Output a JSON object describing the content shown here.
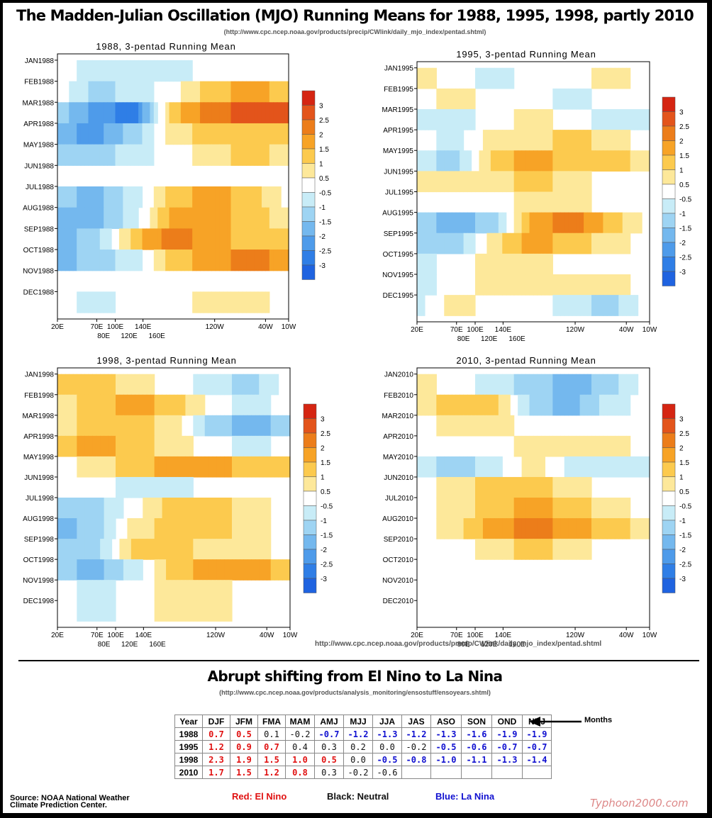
{
  "header": {
    "title": "The Madden-Julian Oscillation (MJO) Running Means for 1988, 1995, 1998, partly 2010",
    "source_url": "(http://www.cpc.ncep.noaa.gov/products/precip/CWlink/daily_mjo_index/pentad.shtml)"
  },
  "mid_source": "http://www.cpc.ncep.noaa.gov/products/precip/CWlink/daily_mjo_index/pentad.shtml",
  "colors": {
    "pos": [
      "#fde89a",
      "#fcca4e",
      "#f7a326",
      "#ec7d1a",
      "#e3541b",
      "#d52512"
    ],
    "neg": [
      "#c8ecf7",
      "#9ed4f3",
      "#74b8ee",
      "#4e9bea",
      "#2f7ee6",
      "#1f63e0"
    ]
  },
  "colorbar_ticks": [
    "3",
    "2.5",
    "2",
    "1.5",
    "1",
    "0.5",
    "-0.5",
    "-1",
    "-1.5",
    "-2",
    "-2.5",
    "-3"
  ],
  "x_axis": {
    "top_labels": [
      "20E",
      "70E",
      "100E",
      "140E",
      "120W",
      "40W",
      "10W"
    ],
    "bottom_labels": [
      "80E",
      "120E",
      "160E"
    ]
  },
  "chart_data": [
    {
      "type": "heatmap",
      "title": "1988, 3-pentad Running Mean",
      "rows": [
        "JAN1988",
        "FEB1988",
        "MAR1988",
        "APR1988",
        "MAY1988",
        "JUN1988",
        "JUL1988",
        "AUG1988",
        "SEP1988",
        "OCT1988",
        "NOV1988",
        "DEC1988"
      ],
      "cols": [
        "20E",
        "70E",
        "100E",
        "140E",
        "120W",
        "40W",
        "10W"
      ],
      "clevels": [
        -3,
        -2.5,
        -2,
        -1.5,
        -1,
        -0.5,
        0.5,
        1,
        1.5,
        2,
        2.5,
        3
      ],
      "values": [
        [
          0,
          -0.5,
          -0.5,
          -0.5,
          0,
          0,
          0
        ],
        [
          0,
          -1,
          -0.5,
          0,
          1,
          1.5,
          1
        ],
        [
          -1,
          -2,
          -2.5,
          1,
          2,
          2.5,
          2.5
        ],
        [
          -1.5,
          -2,
          -1,
          0.5,
          1,
          1,
          1
        ],
        [
          -1,
          -1,
          -0.5,
          0,
          0.5,
          1,
          0.5
        ],
        [
          0,
          0,
          0,
          0,
          0,
          0,
          0
        ],
        [
          -1,
          -1.5,
          -0.5,
          1,
          1.5,
          1,
          0
        ],
        [
          -1.5,
          -1.5,
          -0.5,
          1.5,
          1.5,
          1,
          0.5
        ],
        [
          -1.5,
          -1,
          1,
          2,
          1.5,
          1,
          1
        ],
        [
          -1.5,
          -1,
          -0.5,
          1,
          1.5,
          2,
          1.5
        ],
        [
          0,
          0,
          0,
          0,
          0,
          0,
          0
        ],
        [
          0,
          -0.5,
          0,
          0,
          0.5,
          0.5,
          0
        ]
      ]
    },
    {
      "type": "heatmap",
      "title": "1995, 3-pentad Running Mean",
      "rows": [
        "JAN1995",
        "FEB1995",
        "MAR1995",
        "APR1995",
        "MAY1995",
        "JUN1995",
        "JUL1995",
        "AUG1995",
        "SEP1995",
        "OCT1995",
        "NOV1995",
        "DEC1995"
      ],
      "cols": [
        "20E",
        "70E",
        "100E",
        "140E",
        "120W",
        "40W",
        "10W"
      ],
      "clevels": [
        -3,
        -2.5,
        -2,
        -1.5,
        -1,
        -0.5,
        0.5,
        1,
        1.5,
        2,
        2.5,
        3
      ],
      "values": [
        [
          0.5,
          0,
          -0.5,
          0,
          0,
          0.5,
          0
        ],
        [
          0,
          0.5,
          0,
          0,
          -0.5,
          0,
          0
        ],
        [
          -0.5,
          -0.5,
          0,
          0.5,
          0,
          -0.5,
          -0.5
        ],
        [
          0,
          -0.5,
          0.5,
          0.5,
          1,
          0.5,
          0
        ],
        [
          -0.5,
          -1,
          1,
          1.5,
          1,
          1,
          0.5
        ],
        [
          0.5,
          0.5,
          0.5,
          1,
          0.5,
          0,
          0
        ],
        [
          0,
          0,
          0,
          0.5,
          0.5,
          0,
          0
        ],
        [
          -1,
          -1.5,
          -1,
          1.5,
          2,
          1,
          0
        ],
        [
          -1,
          -1,
          0.5,
          1.5,
          1,
          0.5,
          0
        ],
        [
          -0.5,
          0,
          0.5,
          0.5,
          0,
          0,
          0
        ],
        [
          -0.5,
          0,
          0.5,
          0.5,
          0.5,
          0.5,
          0
        ],
        [
          -0.5,
          0.5,
          0,
          0,
          -0.5,
          -1,
          0
        ]
      ]
    },
    {
      "type": "heatmap",
      "title": "1998, 3-pentad Running Mean",
      "rows": [
        "JAN1998",
        "FEB1998",
        "MAR1998",
        "APR1998",
        "MAY1998",
        "JUN1998",
        "JUL1998",
        "AUG1998",
        "SEP1998",
        "OCT1998",
        "NOV1998",
        "DEC1998"
      ],
      "cols": [
        "20E",
        "70E",
        "100E",
        "140E",
        "120W",
        "40W",
        "10W"
      ],
      "clevels": [
        -3,
        -2.5,
        -2,
        -1.5,
        -1,
        -0.5,
        0.5,
        1,
        1.5,
        2,
        2.5,
        3
      ],
      "values": [
        [
          1,
          1,
          0.5,
          0,
          -0.5,
          -1,
          0
        ],
        [
          0.5,
          1,
          1.5,
          1,
          0,
          -0.5,
          0
        ],
        [
          0.5,
          1,
          1,
          0.5,
          -1,
          -1.5,
          -1
        ],
        [
          1,
          1.5,
          1,
          0.5,
          0,
          -0.5,
          0
        ],
        [
          0,
          0.5,
          1,
          1.5,
          1.5,
          1,
          1
        ],
        [
          0,
          0,
          -0.5,
          -0.5,
          0,
          0,
          0
        ],
        [
          -1,
          -1,
          0,
          1,
          1,
          0.5,
          0
        ],
        [
          -1.5,
          -1,
          0.5,
          1,
          1,
          0.5,
          0
        ],
        [
          -1,
          -1,
          1,
          1,
          0.5,
          0.5,
          0
        ],
        [
          -1,
          -1.5,
          -0.5,
          1,
          1.5,
          1.5,
          1
        ],
        [
          0,
          -0.5,
          0,
          0.5,
          0.5,
          0,
          0
        ],
        [
          0,
          -0.5,
          0,
          0.5,
          0.5,
          0,
          0
        ]
      ]
    },
    {
      "type": "heatmap",
      "title": "2010, 3-pentad Running Mean",
      "rows": [
        "JAN2010",
        "FEB2010",
        "MAR2010",
        "APR2010",
        "MAY2010",
        "JUN2010",
        "JUL2010",
        "AUG2010",
        "SEP2010",
        "OCT2010",
        "NOV2010",
        "DEC2010"
      ],
      "cols": [
        "20E",
        "70E",
        "100E",
        "140E",
        "120W",
        "40W",
        "10W"
      ],
      "clevels": [
        -3,
        -2.5,
        -2,
        -1.5,
        -1,
        -0.5,
        0.5,
        1,
        1.5,
        2,
        2.5,
        3
      ],
      "values": [
        [
          0.5,
          0,
          -0.5,
          -1,
          -1.5,
          -1,
          0
        ],
        [
          0.5,
          1,
          1,
          -1,
          -1.5,
          -0.5,
          0
        ],
        [
          0,
          0.5,
          0.5,
          0,
          0,
          0,
          0
        ],
        [
          0,
          0,
          0,
          0.5,
          0.5,
          0.5,
          0
        ],
        [
          -0.5,
          -1,
          -0.5,
          0.5,
          -0.5,
          -0.5,
          -0.5
        ],
        [
          0,
          0.5,
          1,
          1,
          0.5,
          0,
          0
        ],
        [
          0,
          0.5,
          1,
          1.5,
          1,
          0.5,
          0
        ],
        [
          0,
          0.5,
          1.5,
          2,
          1.5,
          1,
          0.5
        ],
        [
          0,
          0,
          0.5,
          1,
          0.5,
          0,
          0
        ],
        [
          null,
          null,
          null,
          null,
          null,
          null,
          null
        ],
        [
          null,
          null,
          null,
          null,
          null,
          null,
          null
        ],
        [
          null,
          null,
          null,
          null,
          null,
          null,
          null
        ]
      ]
    }
  ],
  "section2": {
    "title": "Abrupt shifting from El Nino to La Nina",
    "source_url": "(http://www.cpc.ncep.noaa.gov/products/analysis_monitoring/ensostuff/ensoyears.shtml)"
  },
  "table": {
    "headers": [
      "Year",
      "DJF",
      "JFM",
      "FMA",
      "MAM",
      "AMJ",
      "MJJ",
      "JJA",
      "JAS",
      "ASO",
      "SON",
      "OND",
      "NDJ"
    ],
    "rows": [
      {
        "year": "1988",
        "values": [
          "0.7",
          "0.5",
          "0.1",
          "-0.2",
          "-0.7",
          "-1.2",
          "-1.3",
          "-1.2",
          "-1.3",
          "-1.6",
          "-1.9",
          "-1.9"
        ],
        "classes": [
          "r",
          "r",
          "k",
          "k",
          "b",
          "b",
          "b",
          "b",
          "b",
          "b",
          "b",
          "b"
        ]
      },
      {
        "year": "1995",
        "values": [
          "1.2",
          "0.9",
          "0.7",
          "0.4",
          "0.3",
          "0.2",
          "0.0",
          "-0.2",
          "-0.5",
          "-0.6",
          "-0.7",
          "-0.7"
        ],
        "classes": [
          "r",
          "r",
          "r",
          "k",
          "k",
          "k",
          "k",
          "k",
          "b",
          "b",
          "b",
          "b"
        ]
      },
      {
        "year": "1998",
        "values": [
          "2.3",
          "1.9",
          "1.5",
          "1.0",
          "0.5",
          "0.0",
          "-0.5",
          "-0.8",
          "-1.0",
          "-1.1",
          "-1.3",
          "-1.4"
        ],
        "classes": [
          "r",
          "r",
          "r",
          "r",
          "r",
          "k",
          "b",
          "b",
          "b",
          "b",
          "b",
          "b"
        ]
      },
      {
        "year": "2010",
        "values": [
          "1.7",
          "1.5",
          "1.2",
          "0.8",
          "0.3",
          "-0.2",
          "-0.6",
          "",
          "",
          "",
          "",
          ""
        ],
        "classes": [
          "r",
          "r",
          "r",
          "r",
          "k",
          "k",
          "k",
          "k",
          "k",
          "k",
          "k",
          "k"
        ]
      }
    ],
    "months_label": "Months"
  },
  "footer": {
    "source": [
      "Source: NOAA National Weather",
      "Climate Prediction Center."
    ],
    "legend_red": "Red: El Nino",
    "legend_black": "Black: Neutral",
    "legend_blue": "Blue: La Nina",
    "brand": "Typhoon2000.com"
  }
}
